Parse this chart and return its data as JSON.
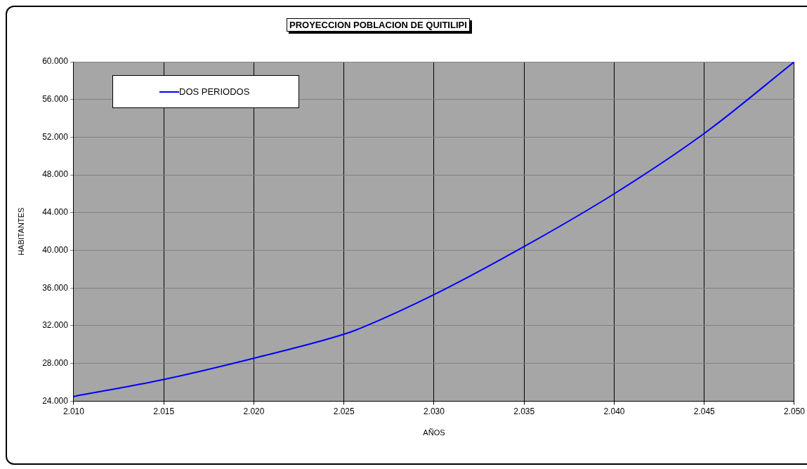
{
  "chart_data": {
    "type": "line",
    "title": "PROYECCION POBLACION DE QUITILIPI",
    "xlabel": "AÑOS",
    "ylabel": "HABITANTES",
    "x": [
      2010,
      2015,
      2020,
      2025,
      2026,
      2030,
      2035,
      2040,
      2045,
      2050
    ],
    "series": [
      {
        "name": "DOS PERIODOS",
        "color": "#0000ff",
        "values": [
          24500,
          26300,
          28550,
          31100,
          31800,
          35300,
          40400,
          46000,
          52400,
          60000
        ]
      }
    ],
    "xlim": [
      2010,
      2050
    ],
    "xticks": [
      {
        "value": 2010,
        "label": "2.010"
      },
      {
        "value": 2015,
        "label": "2.015"
      },
      {
        "value": 2020,
        "label": "2.020"
      },
      {
        "value": 2025,
        "label": "2.025"
      },
      {
        "value": 2030,
        "label": "2.030"
      },
      {
        "value": 2035,
        "label": "2.035"
      },
      {
        "value": 2040,
        "label": "2.040"
      },
      {
        "value": 2045,
        "label": "2.045"
      },
      {
        "value": 2050,
        "label": "2.050"
      }
    ],
    "ylim": [
      24000,
      60000
    ],
    "yticks": [
      {
        "value": 24000,
        "label": "24.000"
      },
      {
        "value": 28000,
        "label": "28.000"
      },
      {
        "value": 32000,
        "label": "32.000"
      },
      {
        "value": 36000,
        "label": "36.000"
      },
      {
        "value": 40000,
        "label": "40.000"
      },
      {
        "value": 44000,
        "label": "44.000"
      },
      {
        "value": 48000,
        "label": "48.000"
      },
      {
        "value": 52000,
        "label": "52.000"
      },
      {
        "value": 56000,
        "label": "56.000"
      },
      {
        "value": 60000,
        "label": "60.000"
      }
    ],
    "grid": true,
    "legend": "top left",
    "marker": "none",
    "line_style": "solid"
  }
}
